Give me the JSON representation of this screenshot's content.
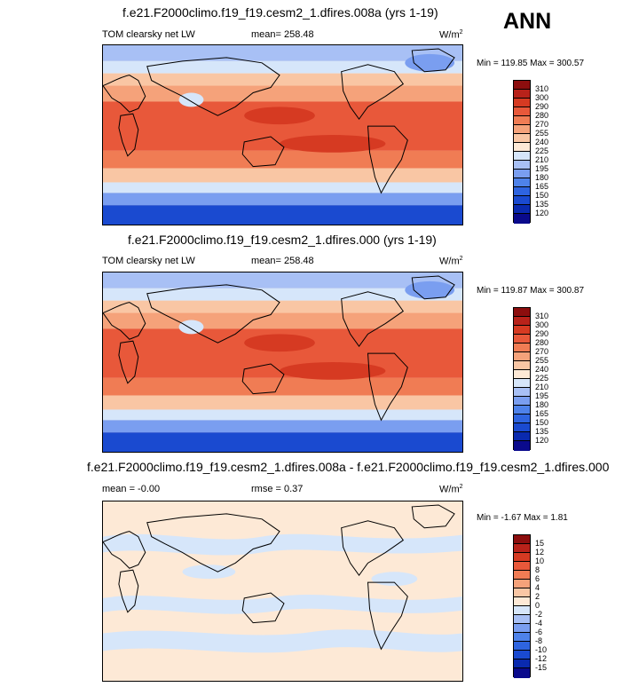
{
  "season": "ANN",
  "units": "W/m",
  "units_exp": "2",
  "colors": {
    "levels15": [
      "#0a0a8c",
      "#0a2aaf",
      "#1a4ad0",
      "#2e64e0",
      "#4e82ea",
      "#7a9ef0",
      "#a8c0f5",
      "#d6e6fa",
      "#fde9d6",
      "#f9c6a4",
      "#f5a27a",
      "#f07c54",
      "#e8583a",
      "#d63a22",
      "#b8221a",
      "#8c0e0e"
    ],
    "diff": [
      "#0a0a8c",
      "#0a2aaf",
      "#1a4ad0",
      "#2e64e0",
      "#4e82ea",
      "#7a9ef0",
      "#a8c0f5",
      "#d6e6fa",
      "#fde9d6",
      "#f9c6a4",
      "#f5a27a",
      "#f07c54",
      "#e8583a",
      "#d63a22",
      "#b8221a",
      "#8c0e0e"
    ]
  },
  "chart_data": [
    {
      "type": "heatmap",
      "title": "f.e21.F2000climo.f19_f19.cesm2_1.dfires.008a (yrs 1-19)",
      "left_label": "TOM clearsky net LW",
      "mean_label": "mean= 258.48",
      "minmax_label": "Min = 119.85 Max = 300.57",
      "colorbar_levels": [
        "310",
        "300",
        "290",
        "280",
        "270",
        "255",
        "240",
        "225",
        "210",
        "195",
        "180",
        "165",
        "150",
        "135",
        "120"
      ],
      "field": "TOM clearsky net LW",
      "mean": 258.48,
      "min": 119.85,
      "max": 300.57
    },
    {
      "type": "heatmap",
      "title": "f.e21.F2000climo.f19_f19.cesm2_1.dfires.000 (yrs 1-19)",
      "left_label": "TOM clearsky net LW",
      "mean_label": "mean= 258.48",
      "minmax_label": "Min = 119.87 Max = 300.87",
      "colorbar_levels": [
        "310",
        "300",
        "290",
        "280",
        "270",
        "255",
        "240",
        "225",
        "210",
        "195",
        "180",
        "165",
        "150",
        "135",
        "120"
      ],
      "field": "TOM clearsky net LW",
      "mean": 258.48,
      "min": 119.87,
      "max": 300.87
    },
    {
      "type": "heatmap",
      "title": "f.e21.F2000climo.f19_f19.cesm2_1.dfires.008a - f.e21.F2000climo.f19_f19.cesm2_1.dfires.000",
      "left_label": "mean =  -0.00",
      "mean_label": "rmse =   0.37",
      "minmax_label": "Min =  -1.67 Max =   1.81",
      "colorbar_levels": [
        "15",
        "12",
        "10",
        "8",
        "6",
        "4",
        "2",
        "0",
        "-2",
        "-4",
        "-6",
        "-8",
        "-10",
        "-12",
        "-15"
      ],
      "mean": -0.0,
      "rmse": 0.37,
      "min": -1.67,
      "max": 1.81
    }
  ]
}
